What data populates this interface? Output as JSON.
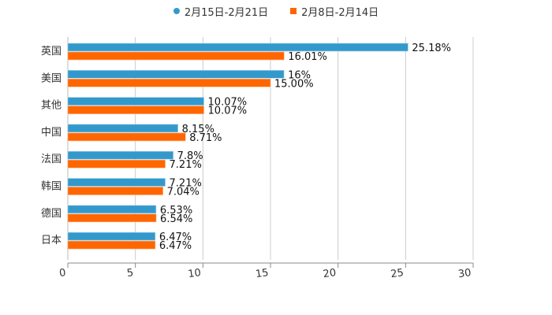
{
  "legend": {
    "series0": "2月15日-2月21日",
    "series1": "2月8日-2月14日"
  },
  "colors": {
    "series0": "#3399cc",
    "series1": "#ff6600",
    "grid": "#cccccc",
    "axis": "#888888"
  },
  "chart_data": {
    "type": "bar",
    "orientation": "horizontal",
    "title": "",
    "xlabel": "",
    "ylabel": "",
    "categories": [
      "英国",
      "美国",
      "其他",
      "中国",
      "法国",
      "韩国",
      "德国",
      "日本"
    ],
    "series": [
      {
        "name": "2月15日-2月21日",
        "values": [
          25.18,
          16,
          10.07,
          8.15,
          7.8,
          7.21,
          6.53,
          6.47
        ],
        "labels": [
          "25.18%",
          "16%",
          "10.07%",
          "8.15%",
          "7.8%",
          "7.21%",
          "6.53%",
          "6.47%"
        ]
      },
      {
        "name": "2月8日-2月14日",
        "values": [
          16.01,
          15.0,
          10.07,
          8.71,
          7.21,
          7.04,
          6.54,
          6.47
        ],
        "labels": [
          "16.01%",
          "15.00%",
          "10.07%",
          "8.71%",
          "7.21%",
          "7.04%",
          "6.54%",
          "6.47%"
        ]
      }
    ],
    "xlim": [
      0,
      30
    ],
    "xticks": [
      "0",
      "5",
      "10",
      "15",
      "20",
      "25",
      "30"
    ],
    "grid": true,
    "legend_position": "top"
  }
}
